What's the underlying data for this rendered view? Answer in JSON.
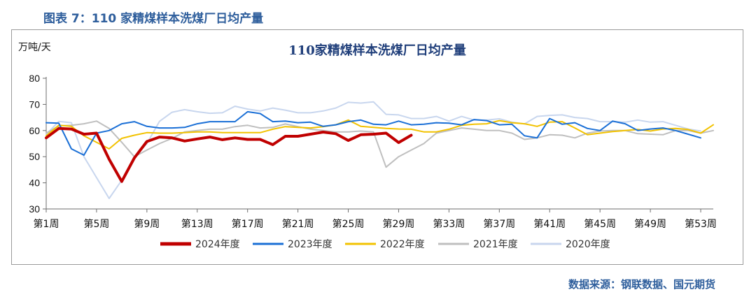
{
  "figure_label": "图表 7：110 家精煤样本洗煤厂日均产量",
  "source": "数据来源：钢联数据、国元期货",
  "colors": {
    "2024": "#c00000",
    "2023": "#1a6fd6",
    "2022": "#f2c200",
    "2021": "#bfbfbf",
    "2020": "#c8d6ee"
  },
  "chart_data": {
    "type": "line",
    "title": "110家精煤样本洗煤厂日均产量",
    "ylabel": "万吨/天",
    "xlabel": "",
    "ylim": [
      30,
      80
    ],
    "yticks": [
      30,
      40,
      50,
      60,
      70,
      80
    ],
    "xlim": [
      1,
      54
    ],
    "xticks": [
      {
        "x": 1,
        "label": "第1周"
      },
      {
        "x": 5,
        "label": "第5周"
      },
      {
        "x": 9,
        "label": "第9周"
      },
      {
        "x": 13,
        "label": "第13周"
      },
      {
        "x": 17,
        "label": "第17周"
      },
      {
        "x": 21,
        "label": "第21周"
      },
      {
        "x": 25,
        "label": "第25周"
      },
      {
        "x": 29,
        "label": "第29周"
      },
      {
        "x": 33,
        "label": "第33周"
      },
      {
        "x": 37,
        "label": "第37周"
      },
      {
        "x": 41,
        "label": "第41周"
      },
      {
        "x": 45,
        "label": "第45周"
      },
      {
        "x": 49,
        "label": "第49周"
      },
      {
        "x": 53,
        "label": "第53周"
      }
    ],
    "grid": false,
    "series": [
      {
        "name": "2020年度",
        "key": "2020",
        "width": 2,
        "values": [
          58.5,
          63.5,
          63.0,
          50.0,
          42.0,
          34.0,
          41.0,
          50.0,
          55.0,
          63.5,
          67.0,
          68.0,
          67.2,
          66.6,
          66.8,
          69.3,
          68.2,
          67.5,
          68.6,
          67.8,
          66.8,
          66.8,
          67.5,
          68.6,
          70.8,
          70.5,
          71.0,
          66.2,
          66.0,
          64.6,
          64.6,
          65.4,
          63.6,
          65.4,
          64.0,
          64.0,
          64.5,
          63.2,
          62.5,
          65.4,
          65.8,
          66.0,
          65.0,
          64.6,
          63.4,
          63.4,
          63.2,
          64.0,
          63.2,
          63.4,
          62.0,
          60.6,
          59.8
        ]
      },
      {
        "name": "2021年度",
        "key": "2021",
        "width": 2,
        "values": [
          59.0,
          61.8,
          62.0,
          62.6,
          63.6,
          60.8,
          55.5,
          50.0,
          52.5,
          55.0,
          57.0,
          59.5,
          60.0,
          60.5,
          60.5,
          61.5,
          62.0,
          61.0,
          61.2,
          62.5,
          61.5,
          60.5,
          60.0,
          59.5,
          59.5,
          59.8,
          59.5,
          46.0,
          50.0,
          52.5,
          55.0,
          59.0,
          60.0,
          61.0,
          60.5,
          60.0,
          60.0,
          59.0,
          56.6,
          57.2,
          58.4,
          58.2,
          57.2,
          59.0,
          59.8,
          60.0,
          60.0,
          58.8,
          58.6,
          58.4,
          60.0,
          60.0,
          59.0,
          60.0
        ]
      },
      {
        "name": "2022年度",
        "key": "2022",
        "width": 2,
        "values": [
          58.0,
          62.0,
          61.6,
          58.0,
          55.5,
          53.0,
          57.0,
          58.2,
          59.2,
          59.0,
          59.0,
          59.2,
          59.5,
          59.5,
          59.2,
          59.2,
          59.2,
          59.2,
          60.5,
          61.5,
          61.2,
          61.0,
          61.5,
          62.2,
          64.0,
          61.6,
          61.2,
          60.8,
          60.6,
          60.5,
          59.5,
          59.5,
          60.5,
          62.0,
          62.4,
          62.6,
          63.8,
          63.0,
          62.6,
          61.6,
          63.2,
          63.4,
          61.0,
          58.4,
          59.0,
          59.6,
          60.0,
          60.4,
          59.8,
          60.6,
          60.8,
          60.4,
          59.0,
          62.2
        ]
      },
      {
        "name": "2023年度",
        "key": "2023",
        "width": 2,
        "values": [
          63.0,
          62.8,
          53.0,
          50.6,
          59.0,
          60.0,
          62.6,
          63.4,
          61.6,
          61.0,
          61.0,
          61.2,
          62.6,
          63.4,
          63.4,
          63.4,
          67.2,
          66.5,
          63.4,
          63.6,
          63.0,
          63.2,
          61.6,
          62.2,
          63.4,
          64.0,
          62.4,
          62.2,
          63.6,
          62.2,
          62.4,
          63.0,
          62.8,
          62.2,
          64.2,
          63.8,
          62.2,
          62.4,
          58.0,
          57.2,
          64.6,
          62.4,
          63.0,
          60.8,
          60.0,
          63.6,
          62.6,
          60.0,
          60.6,
          61.0,
          60.0,
          58.6,
          57.2
        ]
      },
      {
        "name": "2024年度",
        "key": "2024",
        "width": 4,
        "values": [
          57.2,
          60.8,
          60.6,
          58.6,
          59.0,
          49.0,
          40.5,
          49.5,
          55.8,
          57.5,
          57.2,
          56.0,
          56.8,
          57.5,
          56.5,
          57.2,
          56.6,
          56.6,
          54.6,
          57.8,
          57.8,
          58.6,
          59.4,
          58.8,
          56.2,
          58.4,
          58.6,
          59.0,
          55.4,
          58.2
        ]
      }
    ],
    "legend": {
      "position": "bottom",
      "order": [
        "2024",
        "2023",
        "2022",
        "2021",
        "2020"
      ],
      "labels": {
        "2024": "2024年度",
        "2023": "2023年度",
        "2022": "2022年度",
        "2021": "2021年度",
        "2020": "2020年度"
      }
    }
  }
}
